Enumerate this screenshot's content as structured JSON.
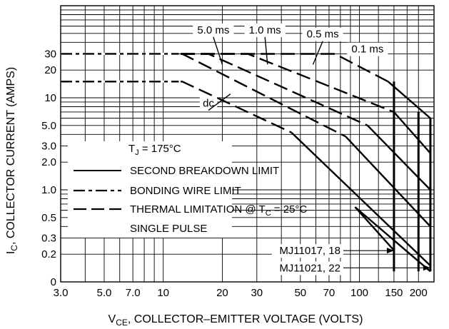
{
  "chart_data": {
    "type": "line",
    "xlabel": {
      "main": "V",
      "sub": "CE",
      "rest": ", COLLECTOR–EMITTER VOLTAGE (VOLTS)"
    },
    "ylabel": {
      "main": "I",
      "sub": "C",
      "rest": ", COLLECTOR CURRENT (AMPS)"
    },
    "x_scale": "log",
    "y_scale": "log",
    "xlim": [
      3,
      240
    ],
    "ylim": [
      0.1,
      100
    ],
    "x_ticks": [
      {
        "v": 3,
        "label": "3.0"
      },
      {
        "v": 5,
        "label": "5.0"
      },
      {
        "v": 7,
        "label": "7.0"
      },
      {
        "v": 10,
        "label": "10"
      },
      {
        "v": 20,
        "label": "20"
      },
      {
        "v": 30,
        "label": "30"
      },
      {
        "v": 50,
        "label": "50"
      },
      {
        "v": 70,
        "label": "70"
      },
      {
        "v": 100,
        "label": "100"
      },
      {
        "v": 150,
        "label": "150"
      },
      {
        "v": 200,
        "label": "200"
      }
    ],
    "y_ticks": [
      {
        "v": 0.1,
        "label": "0"
      },
      {
        "v": 0.2,
        "label": "0.2"
      },
      {
        "v": 0.3,
        "label": "0.3"
      },
      {
        "v": 0.5,
        "label": "0.5"
      },
      {
        "v": 1,
        "label": "1.0"
      },
      {
        "v": 2,
        "label": "2.0"
      },
      {
        "v": 3,
        "label": "3.0"
      },
      {
        "v": 5,
        "label": "5.0"
      },
      {
        "v": 10,
        "label": "10"
      },
      {
        "v": 20,
        "label": "20"
      },
      {
        "v": 30,
        "label": "30"
      }
    ],
    "grid": true,
    "series": [
      {
        "name": "0.1 ms",
        "style": "dashed",
        "points": [
          [
            3,
            30
          ],
          [
            75,
            30
          ],
          [
            140,
            15
          ]
        ]
      },
      {
        "name": "0.5 ms",
        "style": "dashed",
        "points": [
          [
            3,
            30
          ],
          [
            27,
            30
          ],
          [
            150,
            7
          ]
        ]
      },
      {
        "name": "1.0 ms",
        "style": "dashed",
        "points": [
          [
            3,
            30
          ],
          [
            17,
            30
          ],
          [
            110,
            5
          ]
        ]
      },
      {
        "name": "5.0 ms",
        "style": "dashed",
        "points": [
          [
            3,
            30
          ],
          [
            12.5,
            30
          ],
          [
            85,
            3.8
          ]
        ]
      },
      {
        "name": "dc",
        "style": "dashed",
        "points": [
          [
            3,
            15
          ],
          [
            12.5,
            15
          ],
          [
            45,
            4.2
          ]
        ]
      },
      {
        "name": "0.1 ms second breakdown",
        "style": "solid",
        "points": [
          [
            140,
            15
          ],
          [
            230,
            6
          ]
        ]
      },
      {
        "name": "0.5 ms second breakdown",
        "style": "solid",
        "points": [
          [
            150,
            7
          ],
          [
            230,
            2.5
          ]
        ]
      },
      {
        "name": "1.0 ms second breakdown",
        "style": "solid",
        "points": [
          [
            110,
            5
          ],
          [
            230,
            1
          ]
        ]
      },
      {
        "name": "5.0 ms second breakdown",
        "style": "solid",
        "points": [
          [
            85,
            3.8
          ],
          [
            230,
            0.4
          ]
        ]
      },
      {
        "name": "dc second breakdown",
        "style": "solid",
        "points": [
          [
            45,
            4.2
          ],
          [
            230,
            0.15
          ]
        ]
      },
      {
        "name": "MJ11017, 18 branch",
        "style": "solid",
        "points": [
          [
            95,
            0.65
          ],
          [
            150,
            0.22
          ]
        ]
      },
      {
        "name": "MJ11021, 22 branch",
        "style": "solid",
        "points": [
          [
            95,
            0.65
          ],
          [
            230,
            0.13
          ]
        ]
      }
    ],
    "verticals": [
      {
        "x": 150,
        "from": 0.13,
        "to": 15,
        "width": 3
      },
      {
        "x": 200,
        "from": 0.13,
        "to": 7,
        "width": 3
      },
      {
        "x": 230,
        "from": 0.13,
        "to": 6,
        "width": 3
      }
    ],
    "series_labels": [
      {
        "text": "5.0 ms",
        "at": [
          18,
          50
        ],
        "to": [
          20,
          23
        ]
      },
      {
        "text": "1.0 ms",
        "at": [
          33,
          50
        ],
        "to": [
          34,
          23
        ]
      },
      {
        "text": "0.5 ms",
        "at": [
          65,
          45
        ],
        "to": [
          58,
          23
        ]
      },
      {
        "text": "0.1 ms",
        "at": [
          110,
          31
        ]
      },
      {
        "text": "dc",
        "at": [
          17,
          8
        ],
        "to": [
          22,
          11
        ]
      }
    ],
    "legend": {
      "position": "left",
      "title": {
        "main": "T",
        "sub": "J",
        "rest": " = 175°C"
      },
      "entries": [
        {
          "style": "solid",
          "label": "SECOND BREAKDOWN LIMIT"
        },
        {
          "style": "dashdot",
          "label": "BONDING WIRE LIMIT"
        },
        {
          "style": "dashed",
          "label": {
            "main": "THERMAL LIMITATION @ T",
            "sub": "C",
            "rest": " = 25°C"
          }
        },
        {
          "style": "none",
          "label": "SINGLE PULSE"
        }
      ]
    },
    "device_labels": [
      {
        "text": "MJ11017, 18",
        "at": [
          70,
          0.2
        ],
        "arrow_to": [
          150,
          0.2
        ]
      },
      {
        "text": "MJ11021, 22",
        "at": [
          70,
          0.13
        ],
        "arrow_to": [
          230,
          0.13
        ]
      }
    ]
  }
}
